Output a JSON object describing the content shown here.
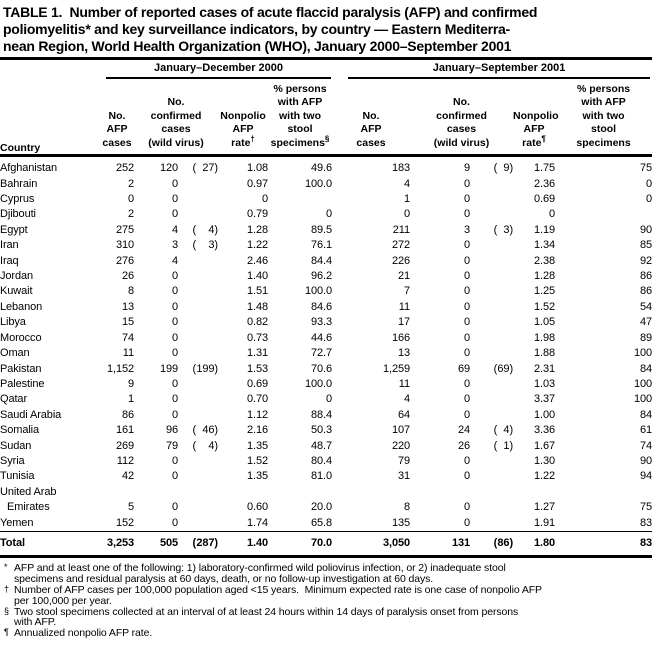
{
  "title": "TABLE 1.  Number of reported cases of acute flaccid paralysis (AFP) and confirmed\npoliomyelitis* and key surveillance indicators, by country — Eastern Mediterra-\nnean Region, World Health Organization (WHO), January 2000–September 2001",
  "table": {
    "country_header": "Country",
    "groups": [
      {
        "label": "January–December 2000"
      },
      {
        "label": "January–September 2001"
      }
    ],
    "columns": [
      {
        "text": "No.\nAFP\ncases",
        "sup": ""
      },
      {
        "text": "No.\nconfirmed\ncases\n(wild virus)",
        "sup": ""
      },
      {
        "text": "Nonpolio\nAFP\nrate",
        "sup": "†"
      },
      {
        "text": "% persons\nwith AFP\nwith two\nstool\nspecimens",
        "sup": "§"
      },
      {
        "text": "No.\nAFP\ncases",
        "sup": ""
      },
      {
        "text": "No.\nconfirmed\ncases\n(wild virus)",
        "sup": ""
      },
      {
        "text": "Nonpolio\nAFP\nrate",
        "sup": "¶"
      },
      {
        "text": "% persons\nwith AFP\nwith two\nstool\nspecimens",
        "sup": ""
      }
    ],
    "format": {
      "paren_open": "(",
      "paren_close": ")"
    },
    "column_names": [
      "afp-cases-2000",
      "confirmed-cases-2000",
      "wild-virus-2000",
      "nonpolio-afp-rate-2000",
      "pct-two-stool-2000",
      "afp-cases-2001",
      "confirmed-cases-2001",
      "wild-virus-2001",
      "nonpolio-afp-rate-2001",
      "pct-two-stool-2001"
    ],
    "rows": [
      {
        "country": "Afghanistan",
        "cells": [
          "252",
          "120",
          "27",
          "1.08",
          "49.6",
          "183",
          "9",
          "9",
          "1.75",
          "75"
        ]
      },
      {
        "country": "Bahrain",
        "cells": [
          "2",
          "0",
          "",
          "0.97",
          "100.0",
          "4",
          "0",
          "",
          "2.36",
          "0"
        ]
      },
      {
        "country": "Cyprus",
        "cells": [
          "0",
          "0",
          "",
          "0",
          "",
          "1",
          "0",
          "",
          "0.69",
          "0"
        ]
      },
      {
        "country": "Djibouti",
        "cells": [
          "2",
          "0",
          "",
          "0.79",
          "0",
          "0",
          "0",
          "",
          "0",
          ""
        ]
      },
      {
        "country": "Egypt",
        "cells": [
          "275",
          "4",
          "4",
          "1.28",
          "89.5",
          "211",
          "3",
          "3",
          "1.19",
          "90"
        ]
      },
      {
        "country": "Iran",
        "cells": [
          "310",
          "3",
          "3",
          "1.22",
          "76.1",
          "272",
          "0",
          "",
          "1.34",
          "85"
        ]
      },
      {
        "country": "Iraq",
        "cells": [
          "276",
          "4",
          "",
          "2.46",
          "84.4",
          "226",
          "0",
          "",
          "2.38",
          "92"
        ]
      },
      {
        "country": "Jordan",
        "cells": [
          "26",
          "0",
          "",
          "1.40",
          "96.2",
          "21",
          "0",
          "",
          "1.28",
          "86"
        ]
      },
      {
        "country": "Kuwait",
        "cells": [
          "8",
          "0",
          "",
          "1.51",
          "100.0",
          "7",
          "0",
          "",
          "1.25",
          "86"
        ]
      },
      {
        "country": "Lebanon",
        "cells": [
          "13",
          "0",
          "",
          "1.48",
          "84.6",
          "11",
          "0",
          "",
          "1.52",
          "54"
        ]
      },
      {
        "country": "Libya",
        "cells": [
          "15",
          "0",
          "",
          "0.82",
          "93.3",
          "17",
          "0",
          "",
          "1.05",
          "47"
        ]
      },
      {
        "country": "Morocco",
        "cells": [
          "74",
          "0",
          "",
          "0.73",
          "44.6",
          "166",
          "0",
          "",
          "1.98",
          "89"
        ]
      },
      {
        "country": "Oman",
        "cells": [
          "11",
          "0",
          "",
          "1.31",
          "72.7",
          "13",
          "0",
          "",
          "1.88",
          "100"
        ]
      },
      {
        "country": "Pakistan",
        "cells": [
          "1,152",
          "199",
          "199",
          "1.53",
          "70.6",
          "1,259",
          "69",
          "69",
          "2.31",
          "84"
        ]
      },
      {
        "country": "Palestine",
        "cells": [
          "9",
          "0",
          "",
          "0.69",
          "100.0",
          "11",
          "0",
          "",
          "1.03",
          "100"
        ]
      },
      {
        "country": "Qatar",
        "cells": [
          "1",
          "0",
          "",
          "0.70",
          "0",
          "4",
          "0",
          "",
          "3.37",
          "100"
        ]
      },
      {
        "country": "Saudi Arabia",
        "cells": [
          "86",
          "0",
          "",
          "1.12",
          "88.4",
          "64",
          "0",
          "",
          "1.00",
          "84"
        ]
      },
      {
        "country": "Somalia",
        "cells": [
          "161",
          "96",
          "46",
          "2.16",
          "50.3",
          "107",
          "24",
          "4",
          "3.36",
          "61"
        ]
      },
      {
        "country": "Sudan",
        "cells": [
          "269",
          "79",
          "4",
          "1.35",
          "48.7",
          "220",
          "26",
          "1",
          "1.67",
          "74"
        ]
      },
      {
        "country": "Syria",
        "cells": [
          "112",
          "0",
          "",
          "1.52",
          "80.4",
          "79",
          "0",
          "",
          "1.30",
          "90"
        ]
      },
      {
        "country": "Tunisia",
        "cells": [
          "42",
          "0",
          "",
          "1.35",
          "81.0",
          "31",
          "0",
          "",
          "1.22",
          "94"
        ]
      },
      {
        "country": "United Arab",
        "country2": "Emirates",
        "cells": [
          "5",
          "0",
          "",
          "0.60",
          "20.0",
          "8",
          "0",
          "",
          "1.27",
          "75"
        ]
      },
      {
        "country": "Yemen",
        "cells": [
          "152",
          "0",
          "",
          "1.74",
          "65.8",
          "135",
          "0",
          "",
          "1.91",
          "83"
        ]
      }
    ],
    "total": {
      "country": "Total",
      "cells": [
        "3,253",
        "505",
        "287",
        "1.40",
        "70.0",
        "3,050",
        "131",
        "86",
        "1.80",
        "83"
      ]
    }
  },
  "footnotes": [
    {
      "marker": "*",
      "text": "AFP and at least one of the following: 1) laboratory-confirmed wild poliovirus infection, or 2) inadequate stool\nspecimens and residual paralysis at 60 days, death, or no follow-up investigation at 60 days."
    },
    {
      "marker": "†",
      "text": "Number of AFP cases per 100,000 population aged <15 years.  Minimum expected rate is one case of nonpolio AFP\nper 100,000 per year."
    },
    {
      "marker": "§",
      "text": "Two stool specimens collected at an interval of at least 24 hours within 14 days of paralysis onset from persons\nwith AFP."
    },
    {
      "marker": "¶",
      "text": "Annualized nonpolio AFP rate."
    }
  ]
}
